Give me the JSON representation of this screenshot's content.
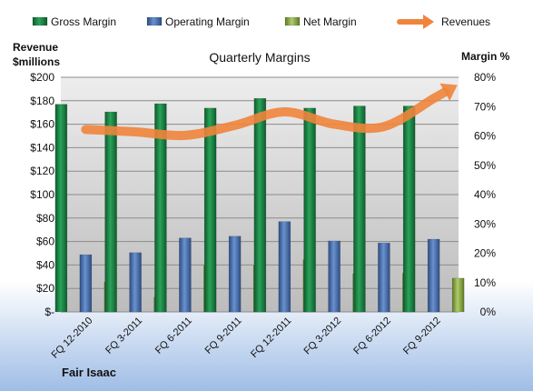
{
  "chart_data": {
    "type": "bar",
    "title": "Quarterly Margins",
    "company": "Fair Isaac",
    "left_axis": {
      "label_line1": "Revenue",
      "label_line2": "$millions",
      "ylim": [
        0,
        200
      ],
      "ticks": [
        "$-",
        "$20",
        "$40",
        "$60",
        "$80",
        "$100",
        "$120",
        "$140",
        "$160",
        "$180",
        "$200"
      ]
    },
    "right_axis": {
      "label": "Margin %",
      "ylim": [
        0,
        80
      ],
      "ticks": [
        "0%",
        "10%",
        "20%",
        "30%",
        "40%",
        "50%",
        "60%",
        "70%",
        "80%"
      ]
    },
    "categories": [
      "FQ 12-2010",
      "FQ 3-2011",
      "FQ 6-2011",
      "FQ 9-2011",
      "FQ 12-2011",
      "FQ 3-2012",
      "FQ 6-2012",
      "FQ 9-2012"
    ],
    "series": [
      {
        "name": "Gross Margin",
        "type": "bar",
        "axis": "right",
        "color": "#1e8a4a",
        "values": [
          70.8,
          68.2,
          71.0,
          69.5,
          72.8,
          69.5,
          70.2,
          70.2
        ]
      },
      {
        "name": "Operating Margin",
        "type": "bar",
        "axis": "right",
        "color": "#4a72b0",
        "values": [
          19.5,
          20.2,
          25.2,
          25.8,
          30.8,
          24.2,
          23.5,
          24.8
        ]
      },
      {
        "name": "Net Margin",
        "type": "bar",
        "axis": "right",
        "color": "#8fb04a",
        "values": [
          10.2,
          5.0,
          15.8,
          15.8,
          17.8,
          13.0,
          13.2,
          11.5
        ]
      },
      {
        "name": "Revenues",
        "type": "line",
        "axis": "left",
        "color": "#f0843c",
        "values": [
          155.5,
          153.5,
          150.5,
          159.0,
          170.5,
          160.0,
          158.0,
          182.0
        ]
      }
    ],
    "legend_position": "top",
    "grid": true
  }
}
